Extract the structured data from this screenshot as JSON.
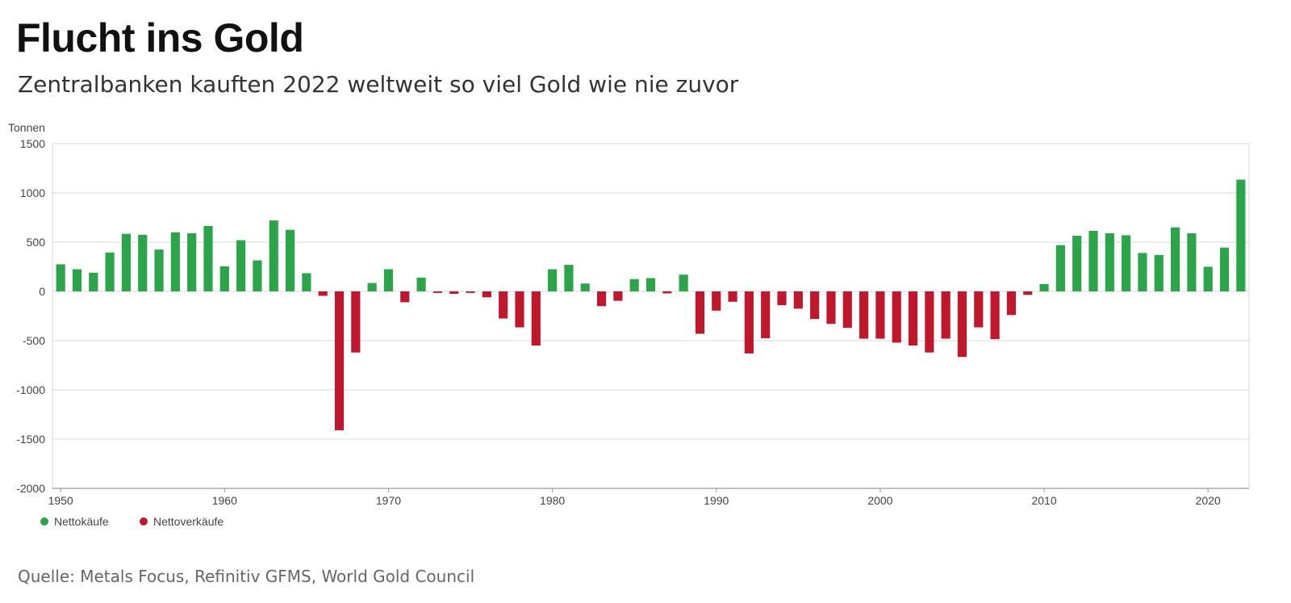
{
  "header": {
    "title": "Flucht ins Gold",
    "subtitle": "Zentralbanken kauften 2022 weltweit so viel Gold wie nie zuvor"
  },
  "footer": {
    "source": "Quelle: Metals Focus, Refinitiv GFMS, World Gold Council"
  },
  "colors": {
    "positive": "#2ca44a",
    "negative": "#c0172d",
    "grid": "#d9d9d9",
    "axis": "#999999",
    "tick_text": "#444444"
  },
  "chart_data": {
    "type": "bar",
    "ylabel": "Tonnen",
    "ylim": [
      -2000,
      1500
    ],
    "yticks": [
      1500,
      1000,
      500,
      0,
      -500,
      -1000,
      -1500,
      -2000
    ],
    "ytick_labels": [
      "1500",
      "1000",
      "500",
      "0",
      "-500",
      "-1000",
      "-1500",
      "-2000"
    ],
    "xlim": [
      1949.5,
      2022.5
    ],
    "xticks": [
      1950,
      1960,
      1970,
      1980,
      1990,
      2000,
      2010,
      2020
    ],
    "xtick_labels": [
      "1950",
      "1960",
      "1970",
      "1980",
      "1990",
      "2000",
      "2010",
      "2020"
    ],
    "grid": true,
    "legend_position": "bottom-left",
    "legend": [
      {
        "label": "Nettokäufe",
        "sign": "positive"
      },
      {
        "label": "Nettoverkäufe",
        "sign": "negative"
      }
    ],
    "x": [
      1950,
      1951,
      1952,
      1953,
      1954,
      1955,
      1956,
      1957,
      1958,
      1959,
      1960,
      1961,
      1962,
      1963,
      1964,
      1965,
      1966,
      1967,
      1968,
      1969,
      1970,
      1971,
      1972,
      1973,
      1974,
      1975,
      1976,
      1977,
      1978,
      1979,
      1980,
      1981,
      1982,
      1983,
      1984,
      1985,
      1986,
      1987,
      1988,
      1989,
      1990,
      1991,
      1992,
      1993,
      1994,
      1995,
      1996,
      1997,
      1998,
      1999,
      2000,
      2001,
      2002,
      2003,
      2004,
      2005,
      2006,
      2007,
      2008,
      2009,
      2010,
      2011,
      2012,
      2013,
      2014,
      2015,
      2016,
      2017,
      2018,
      2019,
      2020,
      2021,
      2022
    ],
    "values": [
      275,
      225,
      190,
      395,
      585,
      575,
      425,
      600,
      590,
      665,
      255,
      520,
      315,
      720,
      625,
      185,
      -45,
      -1410,
      -620,
      85,
      225,
      -110,
      140,
      -15,
      -25,
      -15,
      -60,
      -275,
      -365,
      -550,
      225,
      270,
      80,
      -150,
      -95,
      125,
      135,
      -20,
      170,
      -430,
      -195,
      -105,
      -630,
      -475,
      -140,
      -175,
      -280,
      -330,
      -370,
      -480,
      -480,
      -520,
      -550,
      -620,
      -480,
      -665,
      -365,
      -485,
      -240,
      -35,
      75,
      470,
      565,
      615,
      590,
      570,
      390,
      370,
      650,
      590,
      250,
      445,
      1135
    ]
  }
}
